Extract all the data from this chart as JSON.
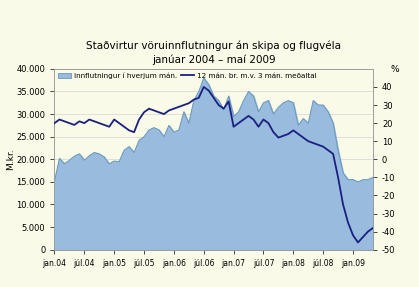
{
  "title_line1": "Staðvirtur vöruinnflutningur án skipa og flugvéla",
  "title_line2": "janúar 2004 – maí 2009",
  "ylabel_left": "M.kr.",
  "ylabel_right": "%",
  "legend_area": "Innflutningur í hverjum mán.",
  "legend_line": "12 mán. br. m.v. 3 mán. meðaltal",
  "background_color": "#fafae8",
  "area_color": "#99bbdd",
  "area_edge_color": "#6699bb",
  "line_color": "#1a2080",
  "ylim_left": [
    0,
    40000
  ],
  "ylim_right": [
    -50,
    50
  ],
  "yticks_left": [
    0,
    5000,
    10000,
    15000,
    20000,
    25000,
    30000,
    35000,
    40000
  ],
  "yticks_right": [
    -50,
    -40,
    -30,
    -20,
    -10,
    0,
    10,
    20,
    30,
    40
  ],
  "xtick_labels": [
    "jan.04",
    "júl.04",
    "jan.05",
    "júl.05",
    "jan.06",
    "júl.06",
    "jan.07",
    "júl.07",
    "jan.08",
    "júl.08",
    "jan.09"
  ],
  "imports": [
    15200,
    20200,
    19000,
    19800,
    20700,
    21200,
    19800,
    20800,
    21500,
    21200,
    20500,
    19000,
    19600,
    19500,
    22000,
    22800,
    21500,
    24200,
    25000,
    26500,
    27000,
    26500,
    25000,
    27500,
    26000,
    26500,
    30500,
    28000,
    33000,
    35000,
    38000,
    36500,
    34000,
    33000,
    31000,
    34000,
    29500,
    30500,
    33000,
    35000,
    34000,
    30500,
    32500,
    33000,
    30000,
    31500,
    32500,
    33000,
    32500,
    27500,
    29000,
    28000,
    33000,
    32000,
    32000,
    30500,
    28000,
    22000,
    17000,
    15500,
    15500,
    15000,
    15500,
    15500,
    16000
  ],
  "growth_rate": [
    20,
    22,
    21,
    20,
    19,
    21,
    20,
    22,
    21,
    20,
    19,
    18,
    22,
    20,
    18,
    16,
    15,
    22,
    26,
    28,
    27,
    26,
    25,
    27,
    28,
    29,
    30,
    31,
    33,
    34,
    40,
    38,
    34,
    30,
    28,
    32,
    18,
    20,
    22,
    24,
    22,
    18,
    22,
    20,
    15,
    12,
    13,
    14,
    16,
    14,
    12,
    10,
    9,
    8,
    7,
    5,
    3,
    -10,
    -25,
    -35,
    -42,
    -46,
    -43,
    -40,
    -38
  ]
}
